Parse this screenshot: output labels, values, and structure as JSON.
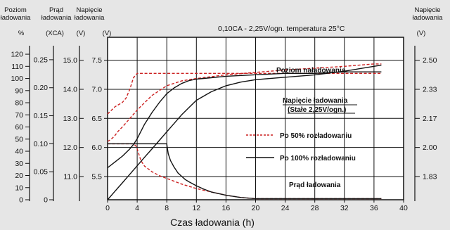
{
  "chart_data": {
    "type": "line",
    "title": "0,10CA - 2,25V/ogn.  temperatura 25°C",
    "xlabel": "Czas ładowania (h)",
    "x_ticks": [
      0,
      4,
      8,
      12,
      16,
      20,
      24,
      28,
      32,
      36,
      40
    ],
    "xlim": [
      0,
      40
    ],
    "grid": true,
    "axes": {
      "soc": {
        "header": "Poziom\nładowania",
        "unit": "%",
        "ticks": [
          0,
          10,
          20,
          30,
          40,
          50,
          60,
          70,
          80,
          90,
          100,
          110,
          120
        ],
        "range": [
          0,
          127
        ]
      },
      "current": {
        "header": "Prąd\nładowania",
        "unit": "(XCA)",
        "ticks": [
          "0",
          "0.05",
          "0.10",
          "0.15",
          "0.20",
          "0.25"
        ],
        "range": [
          0,
          0.275
        ]
      },
      "volt_outer": {
        "header": "Napięcie\nładowania",
        "unit": "(V)",
        "ticks": [
          "11.0",
          "12.0",
          "13.0",
          "14.0",
          "15.0"
        ],
        "range": [
          10.2,
          15.5
        ]
      },
      "volt_cell": {
        "unit": "(V)",
        "ticks": [
          "5.5",
          "6.0",
          "6.5",
          "7.0",
          "7.5"
        ],
        "range": [
          5.1,
          7.75
        ]
      },
      "volt_right": {
        "header": "Napięcie\nładowania",
        "unit": "(V)",
        "ticks": [
          "1.83",
          "2.00",
          "2.17",
          "2.33",
          "2.50"
        ]
      }
    },
    "annotations": {
      "soc": "Poziom naładowania",
      "voltage_1": "Napięcie ładowania",
      "voltage_2": "(Stałe 2,25V/ogn.)",
      "current": "Prąd ładowania"
    },
    "legend": {
      "position": "middle-right"
    },
    "series": [
      {
        "name": "Po 50% rozładowaniu",
        "style": "dashed",
        "color": "#cc2222",
        "curves": {
          "soc": {
            "x": [
              0,
              0.5,
              1,
              1.5,
              2,
              3,
              4,
              5,
              6,
              7,
              8,
              10,
              12,
              14,
              16,
              20,
              24,
              28,
              32,
              36,
              37
            ],
            "y": [
              48,
              50,
              53,
              57,
              60,
              67,
              74,
              80,
              86,
              90,
              94,
              98,
              100,
              101.5,
              103,
              105,
              107,
              108.5,
              110,
              112,
              112
            ]
          },
          "voltage": {
            "x": [
              0,
              1,
              2,
              2.5,
              3,
              3.5,
              4,
              37
            ],
            "y": [
              13.15,
              13.4,
              13.55,
              13.7,
              14.0,
              14.4,
              14.55,
              14.55
            ]
          },
          "current": {
            "x": [
              0,
              3,
              3.5,
              3.9,
              4.5,
              5,
              6,
              7,
              8,
              10,
              12,
              14,
              16,
              18,
              20,
              24,
              28,
              32,
              37
            ],
            "y": [
              0.1,
              0.1,
              0.1,
              0.095,
              0.07,
              0.06,
              0.05,
              0.043,
              0.038,
              0.028,
              0.02,
              0.014,
              0.008,
              0.004,
              0.002,
              0.002,
              0.002,
              0.002,
              0.002
            ]
          }
        }
      },
      {
        "name": "Po 100% rozładowaniu",
        "style": "solid",
        "color": "#111111",
        "curves": {
          "soc": {
            "x": [
              0,
              1,
              2,
              3,
              4,
              5,
              6,
              7,
              8,
              9,
              10,
              11,
              12,
              14,
              16,
              18,
              20,
              24,
              28,
              32,
              36,
              37
            ],
            "y": [
              0,
              7,
              14,
              21,
              28,
              35,
              42,
              49,
              56,
              63,
              70,
              76,
              82,
              89,
              94,
              97,
              99,
              101,
              103,
              106,
              110,
              111
            ]
          },
          "voltage": {
            "x": [
              0,
              1,
              2,
              3,
              3.5,
              4,
              5,
              6,
              7,
              8,
              9,
              10,
              11,
              12,
              14,
              16,
              20,
              24,
              28,
              32,
              37
            ],
            "y": [
              11.3,
              11.5,
              11.7,
              11.95,
              12.1,
              12.3,
              12.8,
              13.2,
              13.55,
              13.85,
              14.05,
              14.2,
              14.3,
              14.35,
              14.4,
              14.45,
              14.5,
              14.55,
              14.55,
              14.6,
              14.6
            ]
          },
          "current": {
            "x": [
              0,
              8,
              8.05,
              8.2,
              8.5,
              9,
              9.5,
              10,
              10.5,
              11,
              12,
              13,
              14,
              16,
              18,
              20,
              24,
              28,
              32,
              37
            ],
            "y": [
              0.1,
              0.1,
              0.095,
              0.082,
              0.07,
              0.058,
              0.048,
              0.042,
              0.036,
              0.032,
              0.025,
              0.019,
              0.014,
              0.008,
              0.004,
              0.002,
              0.002,
              0.002,
              0.002,
              0.002
            ]
          }
        }
      }
    ]
  }
}
